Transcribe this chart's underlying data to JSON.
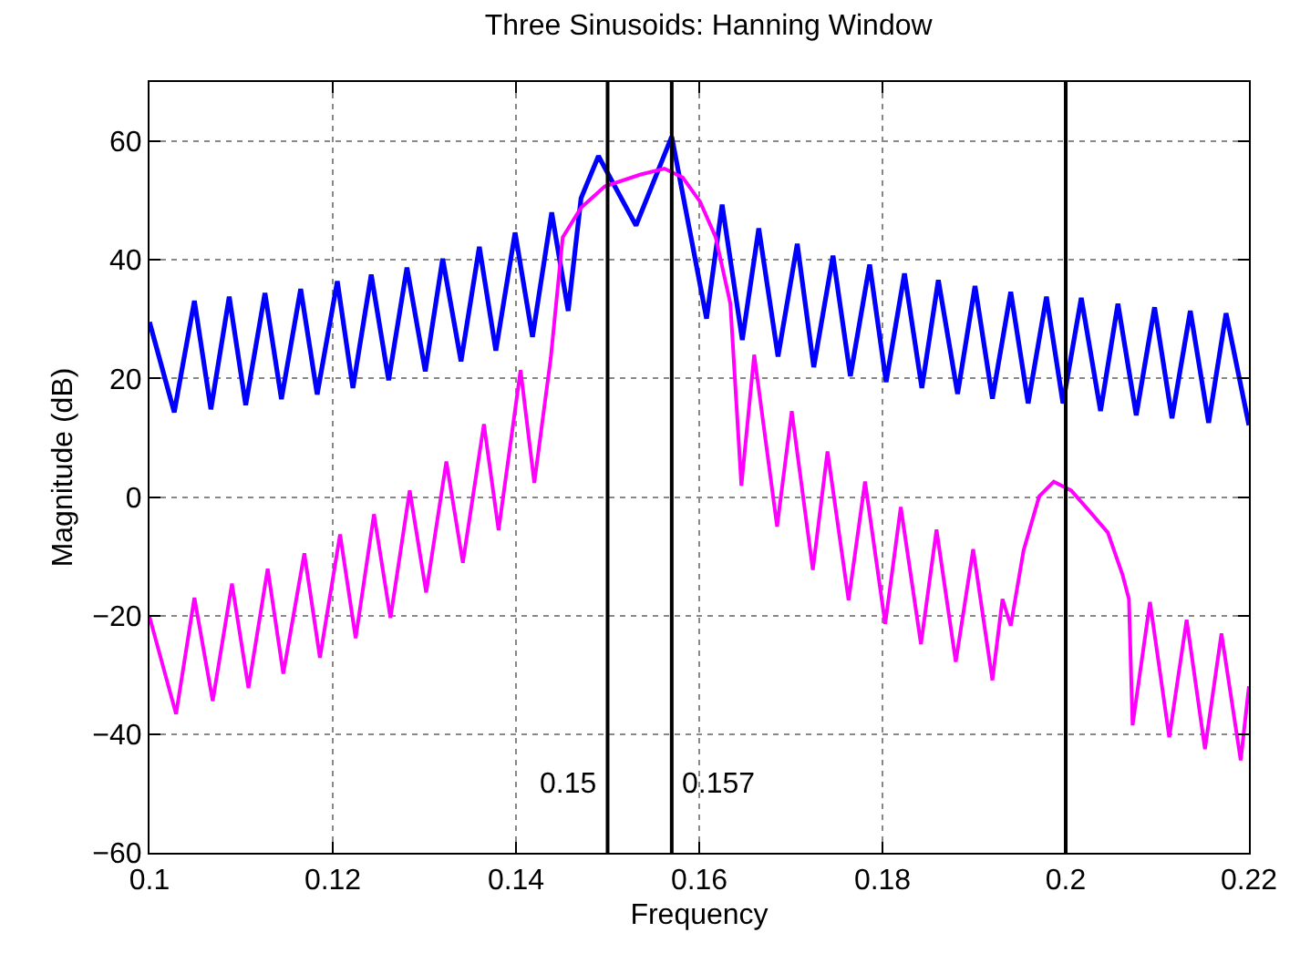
{
  "chart_data": {
    "type": "line",
    "title": "Three Sinusoids: Hanning Window",
    "xlabel": "Frequency",
    "ylabel": "Magnitude (dB)",
    "series": [
      {
        "color": "#0000ff",
        "x": [
          0.1,
          0.1027,
          0.1049,
          0.1067,
          0.1087,
          0.1105,
          0.1126,
          0.1144,
          0.1165,
          0.1183,
          0.1205,
          0.1222,
          0.1242,
          0.1261,
          0.1281,
          0.1301,
          0.132,
          0.134,
          0.136,
          0.1378,
          0.1399,
          0.1418,
          0.1439,
          0.1457,
          0.1471,
          0.149,
          0.1531,
          0.157,
          0.1608,
          0.1625,
          0.1647,
          0.1665,
          0.1686,
          0.1707,
          0.1725,
          0.1746,
          0.1765,
          0.1786,
          0.1804,
          0.1824,
          0.1843,
          0.1861,
          0.1882,
          0.1901,
          0.192,
          0.194,
          0.1959,
          0.1979,
          0.1997,
          0.2017,
          0.2038,
          0.2057,
          0.2077,
          0.2097,
          0.2116,
          0.2136,
          0.2156,
          0.2175,
          0.22
        ],
        "values": [
          29.5,
          14.3,
          33.1,
          14.8,
          33.8,
          15.5,
          34.4,
          16.5,
          35.1,
          17.3,
          36.4,
          18.4,
          37.5,
          19.7,
          38.7,
          21.2,
          40.2,
          22.9,
          42.2,
          24.7,
          44.6,
          27.0,
          48.0,
          31.4,
          50.4,
          57.5,
          45.8,
          60.8,
          30.1,
          49.3,
          26.5,
          45.3,
          23.7,
          42.7,
          21.9,
          40.7,
          20.4,
          39.2,
          19.4,
          37.7,
          18.4,
          36.6,
          17.4,
          35.6,
          16.6,
          34.6,
          15.8,
          33.8,
          15.8,
          33.6,
          14.5,
          32.6,
          13.8,
          32.0,
          13.3,
          31.4,
          12.5,
          31.0,
          12.1
        ]
      },
      {
        "color": "#ff00ff",
        "x": [
          0.1,
          0.1029,
          0.1049,
          0.1069,
          0.109,
          0.1108,
          0.1129,
          0.1146,
          0.1169,
          0.1186,
          0.1208,
          0.1225,
          0.1245,
          0.1263,
          0.1284,
          0.1302,
          0.1324,
          0.1342,
          0.1365,
          0.1381,
          0.1405,
          0.142,
          0.1438,
          0.1451,
          0.1471,
          0.1497,
          0.1536,
          0.1562,
          0.1582,
          0.1601,
          0.1618,
          0.1634,
          0.1646,
          0.166,
          0.1685,
          0.1701,
          0.1724,
          0.174,
          0.1763,
          0.1781,
          0.1803,
          0.182,
          0.1842,
          0.1859,
          0.188,
          0.1899,
          0.192,
          0.1931,
          0.194,
          0.1954,
          0.1971,
          0.1987,
          0.2006,
          0.2026,
          0.2046,
          0.2062,
          0.2069,
          0.2073,
          0.2092,
          0.2113,
          0.2132,
          0.2152,
          0.217,
          0.2191,
          0.22
        ],
        "values": [
          -20.2,
          -36.6,
          -17.0,
          -34.4,
          -14.6,
          -32.2,
          -12.1,
          -29.8,
          -9.5,
          -27.1,
          -6.3,
          -23.8,
          -2.9,
          -20.4,
          1.1,
          -16.1,
          6.0,
          -11.1,
          12.3,
          -5.6,
          21.4,
          2.4,
          23.5,
          43.8,
          48.8,
          52.4,
          54.4,
          55.4,
          53.9,
          49.8,
          43.8,
          32.6,
          1.9,
          24.0,
          -5.0,
          14.5,
          -12.3,
          7.7,
          -17.4,
          2.6,
          -21.4,
          -1.7,
          -24.8,
          -5.5,
          -27.8,
          -8.8,
          -30.9,
          -17.2,
          -21.7,
          -9.0,
          0.1,
          2.6,
          1.1,
          -2.4,
          -6.0,
          -13.1,
          -17.2,
          -38.5,
          -17.7,
          -40.5,
          -20.7,
          -42.5,
          -23.0,
          -44.4,
          -31.9
        ]
      }
    ],
    "xlim": [
      0.1,
      0.22
    ],
    "xticks": [
      0.1,
      0.12,
      0.14,
      0.16,
      0.18,
      0.2,
      0.22
    ],
    "ylim": [
      -60,
      70
    ],
    "yticks": [
      -60,
      -40,
      -20,
      0,
      20,
      40,
      60
    ],
    "grid": true,
    "marker": "none",
    "line_style": "solid",
    "ref_lines": [
      {
        "axis": "x",
        "value": 0.15,
        "color": "#000000",
        "label": "0.15"
      },
      {
        "axis": "x",
        "value": 0.157,
        "color": "#000000",
        "label": "0.157"
      },
      {
        "axis": "x",
        "value": 0.2,
        "color": "#000000"
      }
    ]
  }
}
